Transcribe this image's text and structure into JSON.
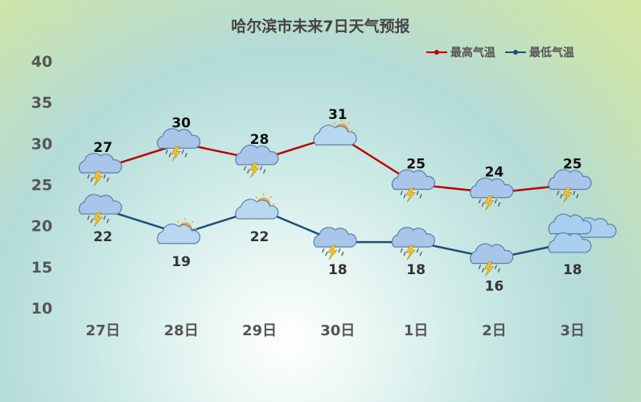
{
  "chart_data": {
    "type": "line",
    "title": "哈尔滨市未来7日天气预报",
    "categories": [
      "27日",
      "28日",
      "29日",
      "30日",
      "1日",
      "2日",
      "3日"
    ],
    "ylim": [
      10,
      40
    ],
    "yticks": [
      10,
      15,
      20,
      25,
      30,
      35,
      40
    ],
    "grid": false,
    "legend_placement": "top-right",
    "series": [
      {
        "name": "最高气温",
        "color": "#c00000",
        "values": [
          27,
          30,
          28,
          31,
          25,
          24,
          25
        ],
        "icons": [
          "thunderstorm-icon",
          "thunderstorm-icon",
          "thunderstorm-icon",
          "partly-sunny-icon",
          "thunderstorm-icon",
          "thunderstorm-icon",
          "thunderstorm-icon"
        ]
      },
      {
        "name": "最低气温",
        "color": "#1f4e79",
        "values": [
          22,
          19,
          22,
          18,
          18,
          16,
          18
        ],
        "icons": [
          "thunderstorm-icon",
          "partly-sunny-icon",
          "partly-sunny-icon",
          "thunderstorm-icon",
          "thunderstorm-icon",
          "thunderstorm-icon",
          "cloudy-icon"
        ]
      }
    ]
  }
}
